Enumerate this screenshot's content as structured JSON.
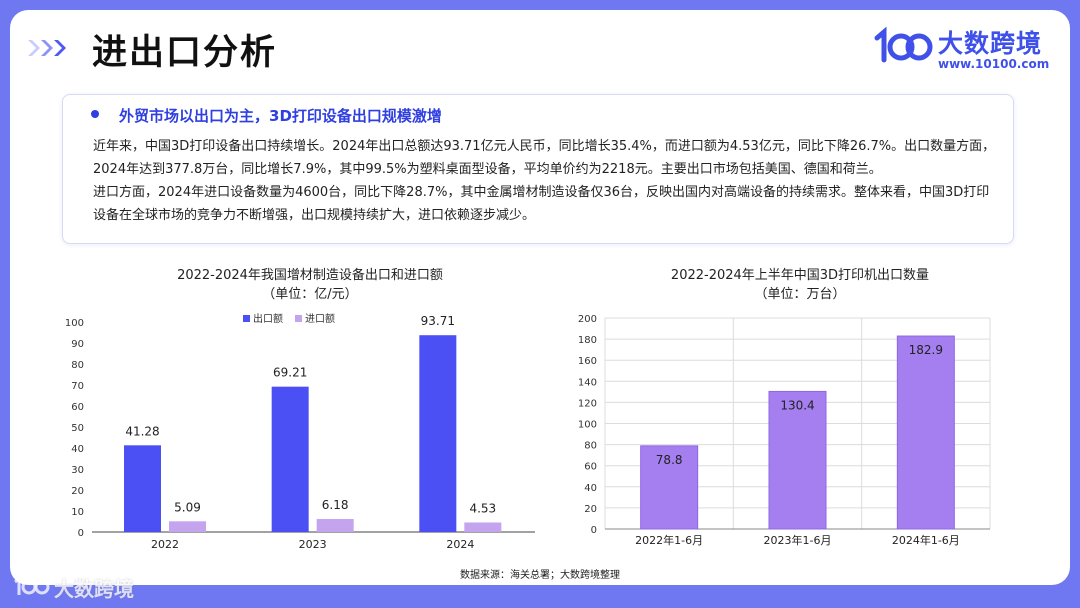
{
  "header": {
    "title": "进出口分析",
    "brand_name": "大数跨境",
    "brand_url": "www.10100.com"
  },
  "summary": {
    "heading": "外贸市场以出口为主，3D打印设备出口规模激增",
    "paragraph_1": "近年来，中国3D打印设备出口持续增长。2024年出口总额达93.71亿元人民币，同比增长35.4%，而进口额为4.53亿元，同比下降26.7%。出口数量方面，2024年达到377.8万台，同比增长7.9%，其中99.5%为塑料桌面型设备，平均单价约为2218元。主要出口市场包括美国、德国和荷兰。",
    "paragraph_2": "进口方面，2024年进口设备数量为4600台，同比下降28.7%，其中金属增材制造设备仅36台，反映出国内对高端设备的持续需求。整体来看，中国3D打印设备在全球市场的竞争力不断增强，出口规模持续扩大，进口依赖逐步减少。"
  },
  "chart_data": [
    {
      "type": "bar",
      "title": "2022-2024年我国增材制造设备出口和进口额",
      "subtitle": "（单位：亿/元）",
      "categories": [
        "2022",
        "2023",
        "2024"
      ],
      "series": [
        {
          "name": "出口额",
          "values": [
            41.28,
            69.21,
            93.71
          ],
          "color": "#4b50f5"
        },
        {
          "name": "进口额",
          "values": [
            5.09,
            6.18,
            4.53
          ],
          "color": "#c4a4ef"
        }
      ],
      "ylim": [
        0,
        100
      ],
      "yticks": [
        0,
        10,
        20,
        30,
        40,
        50,
        60,
        70,
        80,
        90,
        100
      ],
      "grid": false,
      "legend": "top-center",
      "data_labels": true
    },
    {
      "type": "bar",
      "title": "2022-2024年上半年中国3D打印机出口数量",
      "subtitle": "（单位：万台）",
      "categories": [
        "2022年1-6月",
        "2023年1-6月",
        "2024年1-6月"
      ],
      "series": [
        {
          "values": [
            78.8,
            130.4,
            182.9
          ],
          "color": "#a57ef0"
        }
      ],
      "ylim": [
        0,
        200
      ],
      "yticks": [
        0,
        20,
        40,
        60,
        80,
        100,
        120,
        140,
        160,
        180,
        200
      ],
      "grid": true,
      "legend": "none",
      "data_labels": true
    }
  ],
  "footer": {
    "source": "数据来源：海关总署；大数跨境整理",
    "watermark_text": "大数跨境"
  }
}
